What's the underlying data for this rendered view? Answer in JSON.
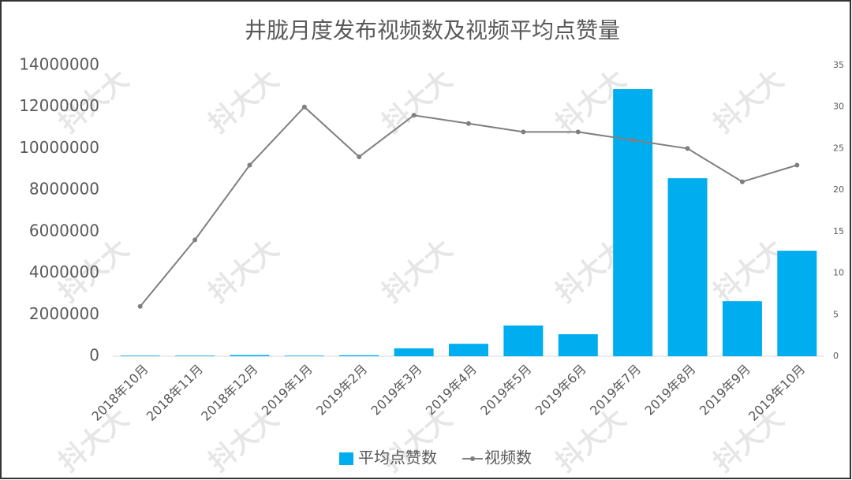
{
  "chart_data": {
    "type": "bar-line",
    "title": "井胧月度发布视频数及视频平均点赞量",
    "watermark": "抖大大",
    "categories": [
      "2018年10月",
      "2018年11月",
      "2018年12月",
      "2019年1月",
      "2019年2月",
      "2019年3月",
      "2019年4月",
      "2019年5月",
      "2019年6月",
      "2019年7月",
      "2019年8月",
      "2019年9月",
      "2019年10月"
    ],
    "series": [
      {
        "name": "平均点赞数",
        "type": "bar",
        "color": "#00aeef",
        "axis": "y",
        "values": [
          30000,
          30000,
          60000,
          30000,
          50000,
          380000,
          600000,
          1480000,
          1060000,
          12860000,
          8570000,
          2650000,
          5080000
        ]
      },
      {
        "name": "视频数",
        "type": "line",
        "color": "#7f7f7f",
        "axis": "y2",
        "values": [
          6,
          14,
          23,
          30,
          24,
          29,
          28,
          27,
          27,
          26,
          25,
          21,
          23
        ]
      }
    ],
    "ylim": [
      0,
      14000000
    ],
    "yticks": [
      0,
      2000000,
      4000000,
      6000000,
      8000000,
      10000000,
      12000000,
      14000000
    ],
    "y2lim": [
      0,
      35
    ],
    "y2ticks": [
      0,
      5,
      10,
      15,
      20,
      25,
      30,
      35
    ],
    "grid": false,
    "legend": "bottom"
  }
}
